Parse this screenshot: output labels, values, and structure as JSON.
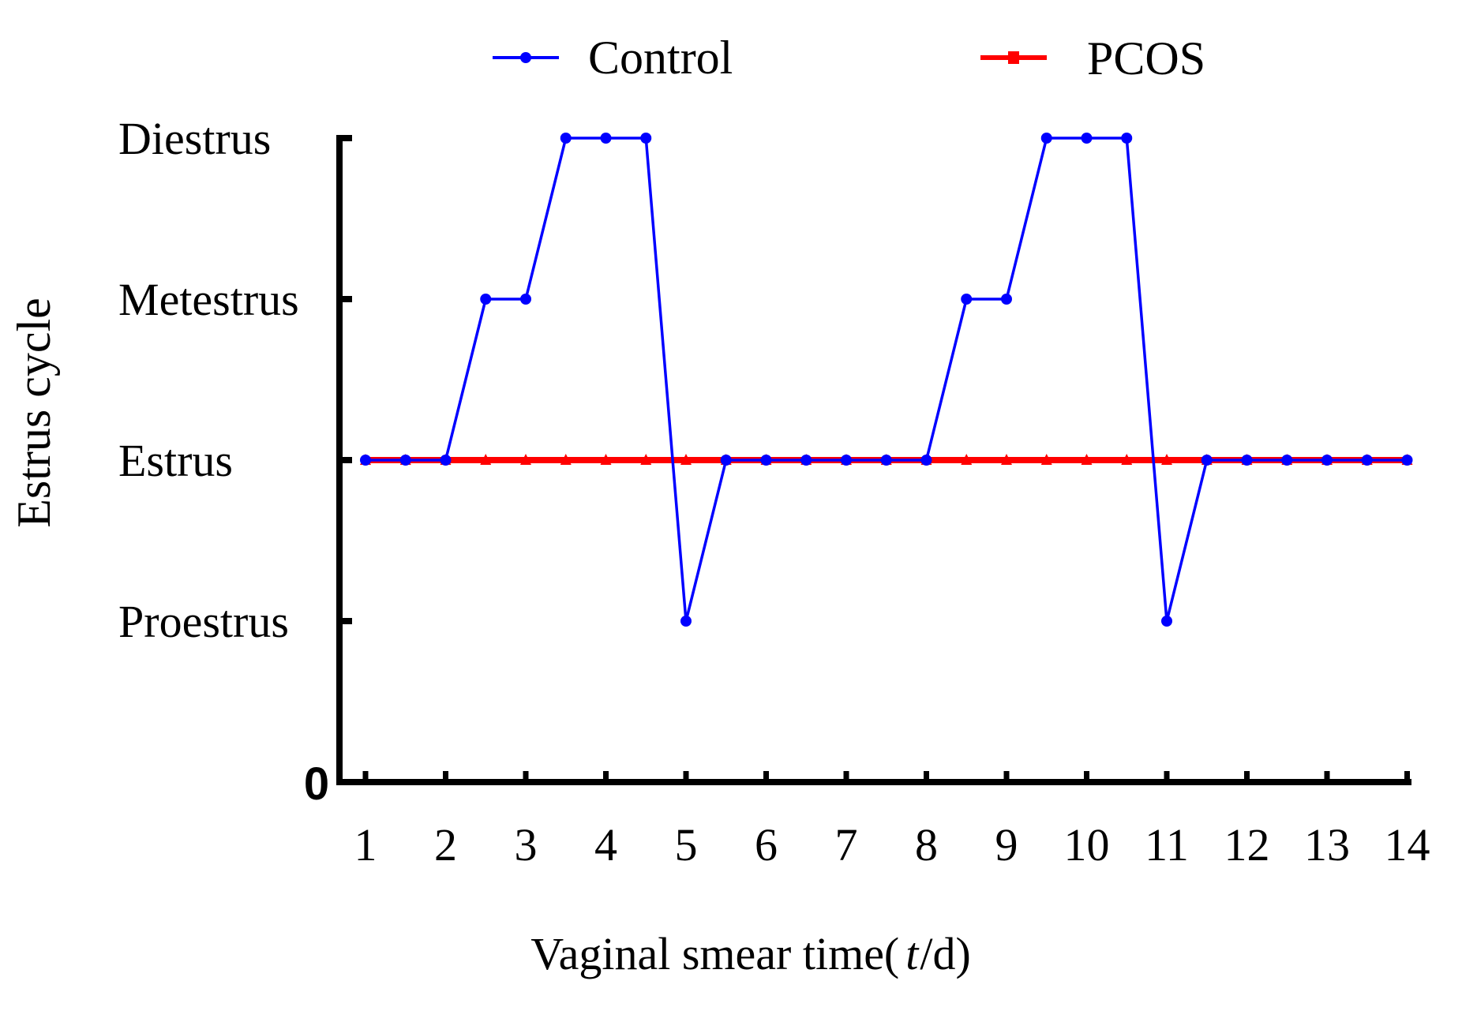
{
  "chart_data": {
    "type": "line",
    "title": "",
    "xlabel_prefix": "Vaginal smear time(",
    "xlabel_var": "t",
    "xlabel_suffix": "/d)",
    "ylabel": "Estrus cycle",
    "xlim": [
      1,
      14
    ],
    "ylim": [
      0,
      4
    ],
    "grid": false,
    "legend_position": "top",
    "x_ticks": [
      1,
      2,
      3,
      4,
      5,
      6,
      7,
      8,
      9,
      10,
      11,
      12,
      13,
      14
    ],
    "x_tick_labels": [
      "1",
      "2",
      "3",
      "4",
      "5",
      "6",
      "7",
      "8",
      "9",
      "10",
      "11",
      "12",
      "13",
      "14"
    ],
    "y_ticks": [
      0,
      1,
      2,
      3,
      4
    ],
    "y_tick_labels": [
      "0",
      "Proestrus",
      "Estrus",
      "Metestrus",
      "Diestrus"
    ],
    "x": [
      1,
      1.5,
      2,
      2.5,
      3,
      3.5,
      4,
      4.5,
      5,
      5.5,
      6,
      6.5,
      7,
      7.5,
      8,
      8.5,
      9,
      9.5,
      10,
      10.5,
      11,
      11.5,
      12,
      12.5,
      13,
      13.5,
      14
    ],
    "series": [
      {
        "name": "Control",
        "color": "#0000ff",
        "marker": "circle",
        "values": [
          2,
          2,
          2,
          3,
          3,
          4,
          4,
          4,
          1,
          2,
          2,
          2,
          2,
          2,
          2,
          3,
          3,
          4,
          4,
          4,
          1,
          2,
          2,
          2,
          2,
          2,
          2
        ]
      },
      {
        "name": "PCOS",
        "color": "#ff0000",
        "marker": "triangle",
        "values": [
          2,
          2,
          2,
          2,
          2,
          2,
          2,
          2,
          2,
          2,
          2,
          2,
          2,
          2,
          2,
          2,
          2,
          2,
          2,
          2,
          2,
          2,
          2,
          2,
          2,
          2,
          2
        ]
      }
    ]
  }
}
